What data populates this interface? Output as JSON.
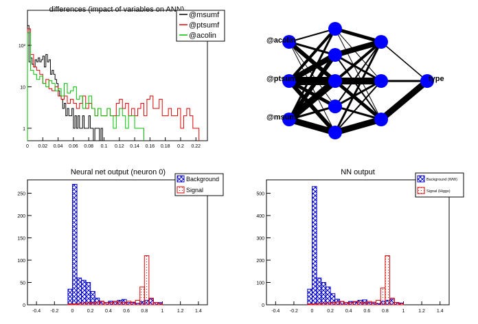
{
  "chart_data": [
    {
      "type": "histogram",
      "title": "differences (impact of variables on ANN)",
      "yscale": "log",
      "xlim": [
        0,
        0.235
      ],
      "ylim": [
        0.5,
        700
      ],
      "xticks": [
        0,
        0.02,
        0.04,
        0.06,
        0.08,
        0.1,
        0.12,
        0.14,
        0.16,
        0.18,
        0.2,
        0.22
      ],
      "xtick_labels": [
        "0",
        "0.02",
        "0.04",
        "0.06",
        "0.08",
        "0.1",
        "0.12",
        "0.14",
        "0.16",
        "0.18",
        "0.2",
        "0.22"
      ],
      "yticks": [
        1,
        10,
        100
      ],
      "ytick_labels": [
        "1",
        "10",
        "10²"
      ],
      "legend_position": "top-right",
      "series": [
        {
          "name": "@msumf",
          "color": "#000000",
          "x": [
            0.0,
            0.002,
            0.004,
            0.006,
            0.008,
            0.01,
            0.012,
            0.014,
            0.016,
            0.018,
            0.02,
            0.022,
            0.024,
            0.026,
            0.028,
            0.03,
            0.032,
            0.034,
            0.036,
            0.038,
            0.04,
            0.042,
            0.044,
            0.046,
            0.048,
            0.05,
            0.052,
            0.054,
            0.056,
            0.058,
            0.06,
            0.062,
            0.064,
            0.066,
            0.068,
            0.07,
            0.072,
            0.074,
            0.076,
            0.078,
            0.08,
            0.082,
            0.084,
            0.086,
            0.088,
            0.09,
            0.092,
            0.094,
            0.096
          ],
          "y": [
            300,
            40,
            50,
            35,
            30,
            45,
            40,
            50,
            40,
            45,
            55,
            30,
            60,
            40,
            45,
            20,
            25,
            20,
            15,
            12,
            8,
            6,
            5,
            3,
            4,
            2,
            3,
            2,
            2,
            3,
            1,
            2,
            1,
            2,
            1,
            1,
            2,
            1,
            1,
            1,
            2,
            1,
            1,
            0.5,
            1,
            1,
            1,
            0.5,
            1
          ]
        },
        {
          "name": "@ptsumf",
          "color": "#e00000",
          "x": [
            0.0,
            0.004,
            0.008,
            0.012,
            0.016,
            0.02,
            0.024,
            0.028,
            0.032,
            0.036,
            0.04,
            0.044,
            0.048,
            0.052,
            0.056,
            0.06,
            0.064,
            0.068,
            0.072,
            0.076,
            0.08,
            0.084,
            0.088,
            0.092,
            0.096,
            0.1,
            0.104,
            0.108,
            0.112,
            0.116,
            0.12,
            0.124,
            0.128,
            0.132,
            0.136,
            0.14,
            0.144,
            0.148,
            0.152,
            0.156,
            0.16,
            0.164,
            0.168,
            0.172,
            0.176,
            0.18,
            0.184,
            0.188,
            0.192,
            0.196,
            0.2,
            0.204,
            0.208,
            0.212,
            0.216,
            0.22
          ],
          "y": [
            250,
            60,
            30,
            25,
            20,
            12,
            15,
            9,
            8,
            10,
            6,
            5,
            6,
            4,
            5,
            4,
            3,
            4,
            6,
            3,
            4,
            3,
            2,
            3,
            2,
            2,
            3,
            2,
            2,
            4,
            5,
            3,
            4,
            2,
            3,
            2,
            3,
            4,
            2,
            5,
            6,
            3,
            3,
            5,
            2,
            2,
            3,
            2,
            2,
            3,
            1,
            2,
            3,
            2,
            1,
            1
          ]
        },
        {
          "name": "@acolin",
          "color": "#00c000",
          "x": [
            0.0,
            0.004,
            0.008,
            0.012,
            0.016,
            0.02,
            0.024,
            0.028,
            0.032,
            0.036,
            0.04,
            0.044,
            0.048,
            0.052,
            0.056,
            0.06,
            0.064,
            0.068,
            0.072,
            0.076,
            0.08,
            0.084,
            0.088,
            0.092,
            0.096,
            0.1,
            0.104,
            0.108,
            0.112,
            0.116,
            0.12,
            0.124,
            0.128,
            0.132,
            0.136,
            0.14,
            0.144,
            0.148
          ],
          "y": [
            200,
            25,
            20,
            15,
            18,
            12,
            10,
            14,
            12,
            8,
            9,
            6,
            12,
            7,
            8,
            10,
            5,
            6,
            3,
            4,
            6,
            3,
            2,
            3,
            2,
            2,
            3,
            2,
            1,
            2,
            3,
            2,
            1,
            2,
            2,
            1,
            1,
            1
          ]
        }
      ]
    },
    {
      "type": "diagram",
      "input_labels": [
        "@acolin",
        "@ptsumf",
        "@msumf"
      ],
      "output_label": "type",
      "node_color": "#0000ff"
    },
    {
      "type": "histogram",
      "title": "Neural net output (neuron 0)",
      "xlim": [
        -0.5,
        1.5
      ],
      "ylim": [
        0,
        280
      ],
      "xticks": [
        -0.4,
        -0.2,
        0,
        0.2,
        0.4,
        0.6,
        0.8,
        1,
        1.2,
        1.4
      ],
      "xtick_labels": [
        "-0.4",
        "-0.2",
        "0",
        "0.2",
        "0.4",
        "0.6",
        "0.8",
        "1",
        "1.2",
        "1.4"
      ],
      "yticks": [
        0,
        50,
        100,
        150,
        200,
        250
      ],
      "ytick_labels": [
        "0",
        "50",
        "100",
        "150",
        "200",
        "250"
      ],
      "legend_position": "top-right",
      "series": [
        {
          "name": "Background",
          "color": "#0000cc",
          "fill": "crosshatch",
          "bins_start": -0.05,
          "bin_width": 0.05,
          "values": [
            35,
            270,
            60,
            55,
            50,
            30,
            15,
            8,
            5,
            8,
            6,
            10,
            12,
            5,
            5,
            3,
            7,
            10,
            13,
            5,
            5
          ]
        },
        {
          "name": "Signal",
          "color": "#dd0000",
          "fill": "dots",
          "bins_start": -0.05,
          "bin_width": 0.05,
          "values": [
            2,
            2,
            3,
            4,
            4,
            5,
            6,
            8,
            5,
            5,
            8,
            6,
            5,
            8,
            6,
            10,
            40,
            110,
            15,
            5,
            3
          ]
        }
      ]
    },
    {
      "type": "histogram",
      "title": "NN output",
      "xlim": [
        -0.5,
        1.5
      ],
      "ylim": [
        0,
        560
      ],
      "xticks": [
        -0.4,
        -0.2,
        0,
        0.2,
        0.4,
        0.6,
        0.8,
        1,
        1.2,
        1.4
      ],
      "xtick_labels": [
        "-0.4",
        "-0.2",
        "0",
        "0.2",
        "0.4",
        "0.6",
        "0.8",
        "1",
        "1.2",
        "1.4"
      ],
      "yticks": [
        0,
        100,
        200,
        300,
        400,
        500
      ],
      "ytick_labels": [
        "0",
        "100",
        "200",
        "300",
        "400",
        "500"
      ],
      "legend_position": "top-right",
      "series": [
        {
          "name": "Background (WW)",
          "color": "#0000cc",
          "fill": "crosshatch",
          "bins_start": -0.05,
          "bin_width": 0.05,
          "values": [
            70,
            530,
            120,
            100,
            80,
            50,
            25,
            15,
            10,
            15,
            12,
            20,
            22,
            10,
            8,
            5,
            15,
            20,
            25,
            10,
            8
          ]
        },
        {
          "name": "Signal (Higgs)",
          "color": "#dd0000",
          "fill": "dots",
          "bins_start": -0.05,
          "bin_width": 0.05,
          "values": [
            4,
            4,
            6,
            7,
            8,
            10,
            12,
            15,
            10,
            10,
            15,
            12,
            10,
            15,
            12,
            20,
            75,
            220,
            30,
            10,
            6
          ]
        }
      ]
    }
  ]
}
